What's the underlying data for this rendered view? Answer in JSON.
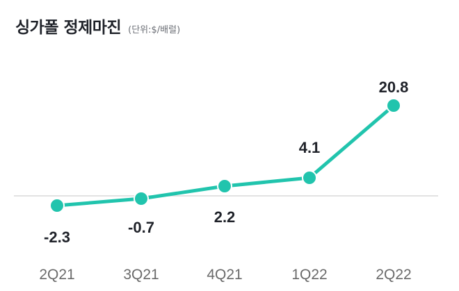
{
  "header": {
    "title": "싱가폴 정제마진",
    "unit": "(단위:$/배럴)"
  },
  "colors": {
    "line": "#21c4ad",
    "baseline": "#e2e2e2",
    "value_text": "#1f2229",
    "axis_text": "#6a6a6a"
  },
  "chart_data": {
    "type": "line",
    "title": "싱가폴 정제마진",
    "subtitle": "(단위:$/배럴)",
    "xlabel": "",
    "ylabel": "$/배럴",
    "categories": [
      "2Q21",
      "3Q21",
      "4Q21",
      "1Q22",
      "2Q22"
    ],
    "values": [
      -2.3,
      -0.7,
      2.2,
      4.1,
      20.8
    ],
    "labels": [
      "-2.3",
      "-0.7",
      "2.2",
      "4.1",
      "20.8"
    ],
    "grid": false,
    "zero_line": true,
    "legend": null
  }
}
